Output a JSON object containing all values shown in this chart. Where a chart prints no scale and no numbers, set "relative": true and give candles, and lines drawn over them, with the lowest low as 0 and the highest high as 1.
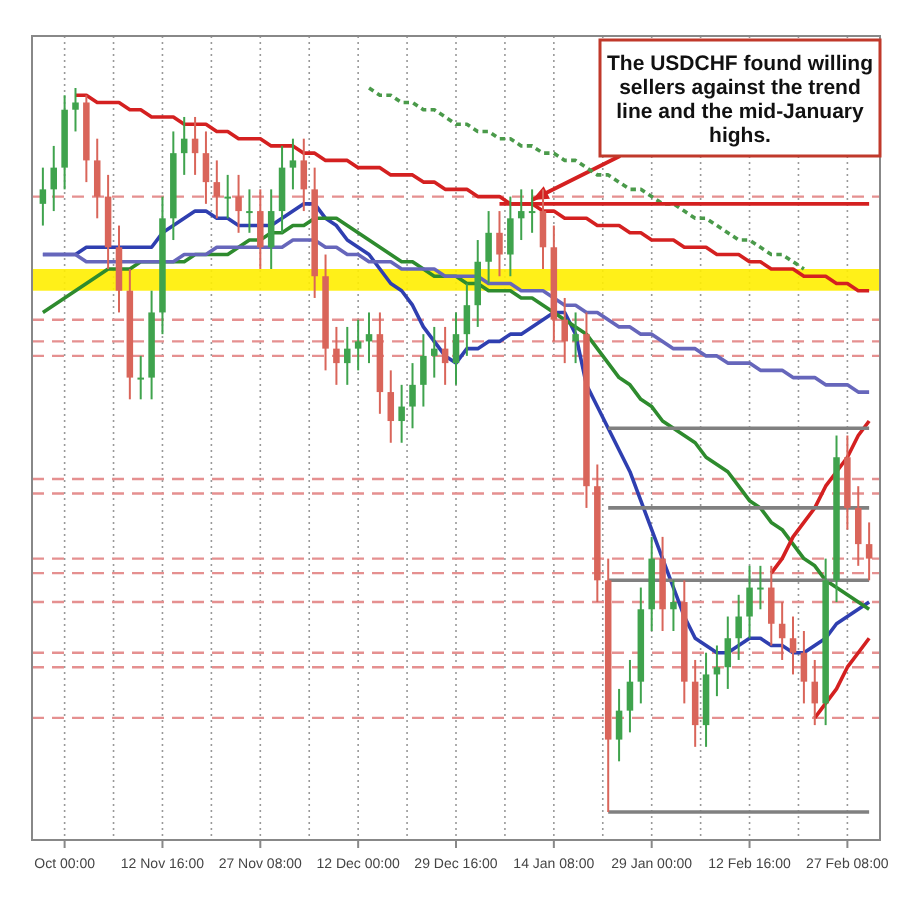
{
  "chart_data": {
    "type": "candlestick",
    "relative": true,
    "grid": "x",
    "tick_labels": "x",
    "categories": [
      null,
      null,
      "Oct 00:00",
      null,
      null,
      null,
      null,
      null,
      null,
      null,
      null,
      "12 Nov 16:00",
      null,
      null,
      null,
      null,
      null,
      null,
      null,
      null,
      "27 Nov 08:00",
      null,
      null,
      null,
      null,
      null,
      null,
      null,
      null,
      "12 Dec 00:00",
      null,
      null,
      null,
      null,
      null,
      null,
      null,
      null,
      "29 Dec 16:00",
      null,
      null,
      null,
      null,
      null,
      null,
      null,
      null,
      "14 Jan 08:00",
      null,
      null,
      null,
      null,
      null,
      null,
      null,
      null,
      "29 Jan 00:00",
      null,
      null,
      null,
      null,
      null,
      null,
      null,
      null,
      "12 Feb 16:00",
      null,
      null,
      null,
      null,
      null,
      null,
      null,
      null,
      "27 Feb 08:00",
      null,
      null
    ],
    "ohlc": [
      [
        0.84,
        0.89,
        0.81,
        0.86
      ],
      [
        0.86,
        0.92,
        0.83,
        0.89
      ],
      [
        0.89,
        0.99,
        0.86,
        0.97
      ],
      [
        0.97,
        1.0,
        0.94,
        0.98
      ],
      [
        0.98,
        0.99,
        0.87,
        0.9
      ],
      [
        0.9,
        0.93,
        0.82,
        0.85
      ],
      [
        0.85,
        0.88,
        0.75,
        0.78
      ],
      [
        0.78,
        0.81,
        0.69,
        0.72
      ],
      [
        0.72,
        0.75,
        0.57,
        0.6
      ],
      [
        0.6,
        0.63,
        0.57,
        0.6
      ],
      [
        0.6,
        0.72,
        0.57,
        0.69
      ],
      [
        0.69,
        0.85,
        0.66,
        0.82
      ],
      [
        0.82,
        0.94,
        0.79,
        0.91
      ],
      [
        0.91,
        0.96,
        0.88,
        0.93
      ],
      [
        0.93,
        0.96,
        0.88,
        0.91
      ],
      [
        0.91,
        0.94,
        0.84,
        0.87
      ],
      [
        0.87,
        0.9,
        0.82,
        0.85
      ],
      [
        0.85,
        0.88,
        0.82,
        0.85
      ],
      [
        0.85,
        0.88,
        0.8,
        0.83
      ],
      [
        0.83,
        0.86,
        0.8,
        0.83
      ],
      [
        0.83,
        0.86,
        0.75,
        0.78
      ],
      [
        0.78,
        0.86,
        0.75,
        0.83
      ],
      [
        0.83,
        0.92,
        0.8,
        0.89
      ],
      [
        0.89,
        0.93,
        0.86,
        0.9
      ],
      [
        0.9,
        0.93,
        0.83,
        0.86
      ],
      [
        0.86,
        0.89,
        0.71,
        0.74
      ],
      [
        0.74,
        0.77,
        0.61,
        0.64
      ],
      [
        0.64,
        0.67,
        0.59,
        0.62
      ],
      [
        0.62,
        0.67,
        0.59,
        0.64
      ],
      [
        0.64,
        0.68,
        0.61,
        0.65
      ],
      [
        0.65,
        0.69,
        0.62,
        0.66
      ],
      [
        0.66,
        0.69,
        0.55,
        0.58
      ],
      [
        0.58,
        0.61,
        0.51,
        0.54
      ],
      [
        0.54,
        0.59,
        0.51,
        0.56
      ],
      [
        0.56,
        0.62,
        0.53,
        0.59
      ],
      [
        0.59,
        0.66,
        0.56,
        0.63
      ],
      [
        0.63,
        0.67,
        0.6,
        0.64
      ],
      [
        0.64,
        0.67,
        0.59,
        0.62
      ],
      [
        0.62,
        0.69,
        0.59,
        0.66
      ],
      [
        0.66,
        0.73,
        0.63,
        0.7
      ],
      [
        0.7,
        0.79,
        0.67,
        0.76
      ],
      [
        0.76,
        0.83,
        0.73,
        0.8
      ],
      [
        0.8,
        0.83,
        0.74,
        0.77
      ],
      [
        0.77,
        0.85,
        0.74,
        0.82
      ],
      [
        0.82,
        0.86,
        0.79,
        0.83
      ],
      [
        0.83,
        0.86,
        0.8,
        0.83
      ],
      [
        0.83,
        0.86,
        0.75,
        0.78
      ],
      [
        0.78,
        0.81,
        0.65,
        0.68
      ],
      [
        0.68,
        0.71,
        0.62,
        0.65
      ],
      [
        0.65,
        0.69,
        0.62,
        0.66
      ],
      [
        0.66,
        0.69,
        0.42,
        0.45
      ],
      [
        0.45,
        0.48,
        0.29,
        0.32
      ],
      [
        0.32,
        0.35,
        0.0,
        0.1
      ],
      [
        0.1,
        0.17,
        0.07,
        0.14
      ],
      [
        0.14,
        0.21,
        0.11,
        0.18
      ],
      [
        0.18,
        0.31,
        0.15,
        0.28
      ],
      [
        0.28,
        0.38,
        0.25,
        0.35
      ],
      [
        0.35,
        0.38,
        0.25,
        0.28
      ],
      [
        0.28,
        0.32,
        0.25,
        0.29
      ],
      [
        0.29,
        0.32,
        0.15,
        0.18
      ],
      [
        0.18,
        0.21,
        0.09,
        0.12
      ],
      [
        0.12,
        0.22,
        0.09,
        0.19
      ],
      [
        0.19,
        0.23,
        0.16,
        0.2
      ],
      [
        0.2,
        0.27,
        0.17,
        0.24
      ],
      [
        0.24,
        0.3,
        0.21,
        0.27
      ],
      [
        0.27,
        0.34,
        0.24,
        0.31
      ],
      [
        0.31,
        0.34,
        0.28,
        0.31
      ],
      [
        0.31,
        0.34,
        0.23,
        0.26
      ],
      [
        0.26,
        0.29,
        0.21,
        0.24
      ],
      [
        0.24,
        0.27,
        0.19,
        0.22
      ],
      [
        0.22,
        0.25,
        0.15,
        0.18
      ],
      [
        0.18,
        0.21,
        0.12,
        0.15
      ],
      [
        0.15,
        0.35,
        0.12,
        0.32
      ],
      [
        0.32,
        0.52,
        0.29,
        0.49
      ],
      [
        0.49,
        0.52,
        0.39,
        0.42
      ],
      [
        0.42,
        0.45,
        0.34,
        0.37
      ],
      [
        0.37,
        0.4,
        0.32,
        0.35
      ]
    ],
    "series": [
      {
        "type": "line",
        "color": "#2f3fb0",
        "values": [
          0.77,
          0.77,
          0.77,
          0.77,
          0.78,
          0.78,
          0.78,
          0.78,
          0.78,
          0.78,
          0.78,
          0.8,
          0.81,
          0.82,
          0.83,
          0.83,
          0.82,
          0.82,
          0.81,
          0.81,
          0.81,
          0.81,
          0.82,
          0.83,
          0.84,
          0.84,
          0.82,
          0.81,
          0.79,
          0.78,
          0.77,
          0.75,
          0.73,
          0.72,
          0.7,
          0.67,
          0.65,
          0.63,
          0.62,
          0.64,
          0.64,
          0.65,
          0.65,
          0.66,
          0.66,
          0.67,
          0.68,
          0.69,
          0.69,
          0.66,
          0.59,
          0.56,
          0.53,
          0.5,
          0.47,
          0.43,
          0.39,
          0.35,
          0.31,
          0.27,
          0.24,
          0.23,
          0.22,
          0.22,
          0.23,
          0.24,
          0.24,
          0.23,
          0.23,
          0.22,
          0.22,
          0.23,
          0.24,
          0.26,
          0.27,
          0.28,
          0.29
        ]
      },
      {
        "type": "line",
        "color": "#2e8b2e",
        "values": [
          0.69,
          0.7,
          0.71,
          0.72,
          0.73,
          0.74,
          0.75,
          0.75,
          0.75,
          0.76,
          0.76,
          0.76,
          0.76,
          0.76,
          0.77,
          0.77,
          0.77,
          0.77,
          0.78,
          0.79,
          0.79,
          0.8,
          0.8,
          0.81,
          0.81,
          0.82,
          0.82,
          0.82,
          0.81,
          0.8,
          0.79,
          0.78,
          0.77,
          0.76,
          0.76,
          0.75,
          0.74,
          0.74,
          0.74,
          0.73,
          0.73,
          0.72,
          0.72,
          0.72,
          0.71,
          0.71,
          0.7,
          0.69,
          0.68,
          0.67,
          0.66,
          0.64,
          0.62,
          0.6,
          0.59,
          0.57,
          0.56,
          0.54,
          0.53,
          0.52,
          0.51,
          0.49,
          0.48,
          0.47,
          0.45,
          0.43,
          0.42,
          0.4,
          0.39,
          0.37,
          0.35,
          0.34,
          0.32,
          0.31,
          0.3,
          0.29,
          0.28
        ]
      },
      {
        "type": "line",
        "color": "#6666bb",
        "values": [
          0.77,
          0.77,
          0.77,
          0.77,
          0.76,
          0.76,
          0.76,
          0.76,
          0.76,
          0.76,
          0.76,
          0.76,
          0.76,
          0.77,
          0.77,
          0.77,
          0.78,
          0.78,
          0.78,
          0.78,
          0.78,
          0.78,
          0.78,
          0.79,
          0.79,
          0.79,
          0.78,
          0.78,
          0.77,
          0.77,
          0.76,
          0.76,
          0.76,
          0.75,
          0.75,
          0.75,
          0.75,
          0.74,
          0.74,
          0.74,
          0.74,
          0.73,
          0.73,
          0.73,
          0.72,
          0.72,
          0.72,
          0.71,
          0.7,
          0.7,
          0.69,
          0.69,
          0.68,
          0.67,
          0.67,
          0.66,
          0.66,
          0.65,
          0.64,
          0.64,
          0.64,
          0.63,
          0.63,
          0.62,
          0.62,
          0.62,
          0.61,
          0.61,
          0.61,
          0.6,
          0.6,
          0.6,
          0.59,
          0.59,
          0.59,
          0.58,
          0.58
        ]
      },
      {
        "type": "line",
        "color": "#4a9a4a",
        "line_style": "dotted",
        "values": [
          null,
          null,
          null,
          null,
          null,
          null,
          null,
          null,
          null,
          null,
          null,
          null,
          null,
          null,
          null,
          null,
          null,
          null,
          null,
          null,
          null,
          null,
          null,
          null,
          null,
          null,
          null,
          null,
          null,
          null,
          1.0,
          0.99,
          0.99,
          0.98,
          0.98,
          0.97,
          0.97,
          0.96,
          0.95,
          0.95,
          0.94,
          0.94,
          0.93,
          0.93,
          0.92,
          0.92,
          0.91,
          0.91,
          0.9,
          0.9,
          0.89,
          0.88,
          0.88,
          0.87,
          0.86,
          0.86,
          0.85,
          0.84,
          0.84,
          0.83,
          0.82,
          0.82,
          0.81,
          0.8,
          0.79,
          0.79,
          0.78,
          0.77,
          0.77,
          0.76,
          0.75,
          null,
          null,
          null,
          null,
          null,
          null
        ]
      },
      {
        "type": "line",
        "color": "#d42020",
        "values": [
          null,
          null,
          null,
          0.99,
          0.99,
          0.98,
          0.98,
          0.98,
          0.97,
          0.97,
          0.96,
          0.96,
          0.96,
          0.95,
          0.95,
          0.95,
          0.94,
          0.94,
          0.93,
          0.93,
          0.93,
          0.92,
          0.92,
          0.92,
          0.91,
          0.91,
          0.9,
          0.9,
          0.9,
          0.89,
          0.89,
          0.89,
          0.88,
          0.88,
          0.88,
          0.87,
          0.87,
          0.86,
          0.86,
          0.86,
          0.85,
          0.85,
          0.85,
          0.84,
          0.84,
          0.84,
          0.83,
          0.83,
          0.82,
          0.82,
          0.82,
          0.81,
          0.81,
          0.81,
          0.8,
          0.8,
          0.79,
          0.79,
          0.79,
          0.78,
          0.78,
          0.78,
          0.77,
          0.77,
          0.77,
          0.76,
          0.76,
          0.75,
          0.75,
          0.75,
          0.74,
          0.74,
          0.74,
          0.73,
          0.73,
          0.72,
          0.72
        ]
      },
      {
        "type": "line",
        "color": "#d42020",
        "values": [
          null,
          null,
          null,
          null,
          null,
          null,
          null,
          null,
          null,
          null,
          null,
          null,
          null,
          null,
          null,
          null,
          null,
          null,
          null,
          null,
          null,
          null,
          null,
          null,
          null,
          null,
          null,
          null,
          null,
          null,
          null,
          null,
          null,
          null,
          null,
          null,
          null,
          null,
          null,
          null,
          null,
          null,
          0.84,
          0.84,
          0.84,
          0.84,
          0.84,
          0.84,
          0.84,
          0.84,
          0.84,
          0.84,
          0.84,
          0.84,
          0.84,
          0.84,
          0.84,
          0.84,
          0.84,
          0.84,
          0.84,
          0.84,
          0.84,
          0.84,
          0.84,
          0.84,
          0.84,
          0.84,
          0.84,
          0.84,
          0.84,
          0.84,
          0.84,
          0.84,
          0.84,
          0.84,
          0.84
        ]
      },
      {
        "type": "line",
        "color": "#d42020",
        "values": [
          null,
          null,
          null,
          null,
          null,
          null,
          null,
          null,
          null,
          null,
          null,
          null,
          null,
          null,
          null,
          null,
          null,
          null,
          null,
          null,
          null,
          null,
          null,
          null,
          null,
          null,
          null,
          null,
          null,
          null,
          null,
          null,
          null,
          null,
          null,
          null,
          null,
          null,
          null,
          null,
          null,
          null,
          null,
          null,
          null,
          null,
          null,
          null,
          null,
          null,
          null,
          null,
          null,
          null,
          null,
          null,
          null,
          null,
          null,
          null,
          null,
          null,
          null,
          null,
          null,
          null,
          null,
          0.33,
          0.35,
          0.38,
          0.4,
          0.42,
          0.45,
          0.47,
          0.49,
          0.52,
          0.54
        ]
      },
      {
        "type": "line",
        "color": "#d42020",
        "values": [
          null,
          null,
          null,
          null,
          null,
          null,
          null,
          null,
          null,
          null,
          null,
          null,
          null,
          null,
          null,
          null,
          null,
          null,
          null,
          null,
          null,
          null,
          null,
          null,
          null,
          null,
          null,
          null,
          null,
          null,
          null,
          null,
          null,
          null,
          null,
          null,
          null,
          null,
          null,
          null,
          null,
          null,
          null,
          null,
          null,
          null,
          null,
          null,
          null,
          null,
          null,
          null,
          null,
          null,
          null,
          null,
          null,
          null,
          null,
          null,
          null,
          null,
          null,
          null,
          null,
          null,
          null,
          null,
          null,
          null,
          null,
          0.13,
          0.15,
          0.17,
          0.2,
          0.22,
          0.24
        ]
      },
      {
        "type": "line",
        "color": "#808080",
        "values": [
          null,
          null,
          null,
          null,
          null,
          null,
          null,
          null,
          null,
          null,
          null,
          null,
          null,
          null,
          null,
          null,
          null,
          null,
          null,
          null,
          null,
          null,
          null,
          null,
          null,
          null,
          null,
          null,
          null,
          null,
          null,
          null,
          null,
          null,
          null,
          null,
          null,
          null,
          null,
          null,
          null,
          null,
          null,
          null,
          null,
          null,
          null,
          null,
          null,
          null,
          null,
          null,
          0.53,
          0.53,
          0.53,
          0.53,
          0.53,
          0.53,
          0.53,
          0.53,
          0.53,
          0.53,
          0.53,
          0.53,
          0.53,
          0.53,
          0.53,
          0.53,
          0.53,
          0.53,
          0.53,
          0.53,
          0.53,
          0.53,
          0.53,
          0.53,
          0.53
        ]
      },
      {
        "type": "line",
        "color": "#808080",
        "values": [
          null,
          null,
          null,
          null,
          null,
          null,
          null,
          null,
          null,
          null,
          null,
          null,
          null,
          null,
          null,
          null,
          null,
          null,
          null,
          null,
          null,
          null,
          null,
          null,
          null,
          null,
          null,
          null,
          null,
          null,
          null,
          null,
          null,
          null,
          null,
          null,
          null,
          null,
          null,
          null,
          null,
          null,
          null,
          null,
          null,
          null,
          null,
          null,
          null,
          null,
          null,
          null,
          0.42,
          0.42,
          0.42,
          0.42,
          0.42,
          0.42,
          0.42,
          0.42,
          0.42,
          0.42,
          0.42,
          0.42,
          0.42,
          0.42,
          0.42,
          0.42,
          0.42,
          0.42,
          0.42,
          0.42,
          0.42,
          0.42,
          0.42,
          0.42,
          0.42
        ]
      },
      {
        "type": "line",
        "color": "#808080",
        "values": [
          null,
          null,
          null,
          null,
          null,
          null,
          null,
          null,
          null,
          null,
          null,
          null,
          null,
          null,
          null,
          null,
          null,
          null,
          null,
          null,
          null,
          null,
          null,
          null,
          null,
          null,
          null,
          null,
          null,
          null,
          null,
          null,
          null,
          null,
          null,
          null,
          null,
          null,
          null,
          null,
          null,
          null,
          null,
          null,
          null,
          null,
          null,
          null,
          null,
          null,
          null,
          null,
          0.32,
          0.32,
          0.32,
          0.32,
          0.32,
          0.32,
          0.32,
          0.32,
          0.32,
          0.32,
          0.32,
          0.32,
          0.32,
          0.32,
          0.32,
          0.32,
          0.32,
          0.32,
          0.32,
          0.32,
          0.32,
          0.32,
          0.32,
          0.32,
          0.32
        ]
      },
      {
        "type": "line",
        "color": "#808080",
        "values": [
          null,
          null,
          null,
          null,
          null,
          null,
          null,
          null,
          null,
          null,
          null,
          null,
          null,
          null,
          null,
          null,
          null,
          null,
          null,
          null,
          null,
          null,
          null,
          null,
          null,
          null,
          null,
          null,
          null,
          null,
          null,
          null,
          null,
          null,
          null,
          null,
          null,
          null,
          null,
          null,
          null,
          null,
          null,
          null,
          null,
          null,
          null,
          null,
          null,
          null,
          null,
          null,
          0.0,
          0.0,
          0.0,
          0.0,
          0.0,
          0.0,
          0.0,
          0.0,
          0.0,
          0.0,
          0.0,
          0.0,
          0.0,
          0.0,
          0.0,
          0.0,
          0.0,
          0.0,
          0.0,
          0.0,
          0.0,
          0.0,
          0.0,
          0.0,
          0.0
        ]
      }
    ],
    "bands": [
      {
        "axis": "y",
        "from": 0.72,
        "to": 0.75,
        "color": "#ffee00"
      }
    ],
    "ref_lines": [
      {
        "axis": "y",
        "value": 0.85,
        "color": "#e59090",
        "line_style": "dashed"
      },
      {
        "axis": "y",
        "value": 0.68,
        "color": "#e59090",
        "line_style": "dashed"
      },
      {
        "axis": "y",
        "value": 0.65,
        "color": "#e59090",
        "line_style": "dashed"
      },
      {
        "axis": "y",
        "value": 0.63,
        "color": "#e59090",
        "line_style": "dashed"
      },
      {
        "axis": "y",
        "value": 0.46,
        "color": "#e59090",
        "line_style": "dashed"
      },
      {
        "axis": "y",
        "value": 0.44,
        "color": "#e59090",
        "line_style": "dashed"
      },
      {
        "axis": "y",
        "value": 0.35,
        "color": "#e59090",
        "line_style": "dashed"
      },
      {
        "axis": "y",
        "value": 0.33,
        "color": "#e59090",
        "line_style": "dashed"
      },
      {
        "axis": "y",
        "value": 0.29,
        "color": "#e59090",
        "line_style": "dashed"
      },
      {
        "axis": "y",
        "value": 0.22,
        "color": "#e59090",
        "line_style": "dashed"
      },
      {
        "axis": "y",
        "value": 0.2,
        "color": "#e59090",
        "line_style": "dashed"
      },
      {
        "axis": "y",
        "value": 0.13,
        "color": "#e59090",
        "line_style": "dashed"
      }
    ],
    "annotations": [
      "The USDCHF found willing sellers against the trend line and the mid-January highs."
    ]
  }
}
